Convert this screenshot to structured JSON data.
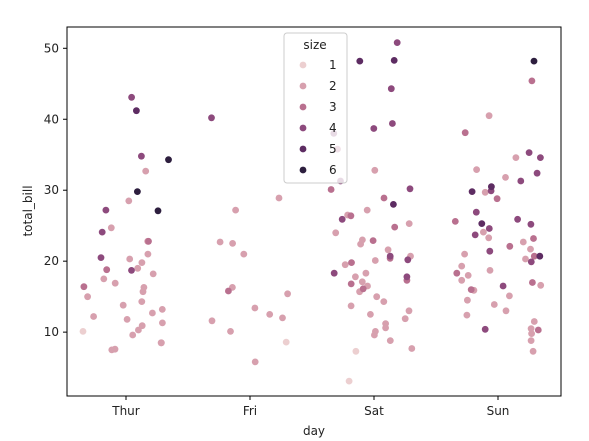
{
  "chart_data": {
    "type": "scatter",
    "plot_style": "stripplot",
    "xlabel": "day",
    "ylabel": "total_bill",
    "categories": [
      "Thur",
      "Fri",
      "Sat",
      "Sun"
    ],
    "y_ticks": [
      10,
      20,
      30,
      40,
      50
    ],
    "ylim": [
      1.0,
      53.0
    ],
    "grid": false,
    "legend": {
      "title": "size",
      "placement": "top-center",
      "entries": [
        {
          "size": 1,
          "label": "1",
          "color": "#eccfd0"
        },
        {
          "size": 2,
          "label": "2",
          "color": "#d7a0ae"
        },
        {
          "size": 3,
          "label": "3",
          "color": "#b9708f"
        },
        {
          "size": 4,
          "label": "4",
          "color": "#8d4a7d"
        },
        {
          "size": 5,
          "label": "5",
          "color": "#5d2c62"
        },
        {
          "size": 6,
          "label": "6",
          "color": "#2d1e3e"
        }
      ]
    },
    "series": [
      {
        "size": 1,
        "points": [
          [
            "Thur",
            10.1
          ],
          [
            "Fri",
            8.6
          ],
          [
            "Sat",
            7.3
          ],
          [
            "Sat",
            3.1
          ]
        ]
      },
      {
        "size": 2,
        "points": [
          [
            "Thur",
            32.7
          ],
          [
            "Thur",
            28.5
          ],
          [
            "Thur",
            24.7
          ],
          [
            "Thur",
            22.8
          ],
          [
            "Thur",
            21.0
          ],
          [
            "Thur",
            20.3
          ],
          [
            "Thur",
            19.8
          ],
          [
            "Thur",
            19.0
          ],
          [
            "Thur",
            18.2
          ],
          [
            "Thur",
            17.5
          ],
          [
            "Thur",
            16.9
          ],
          [
            "Thur",
            16.3
          ],
          [
            "Thur",
            15.7
          ],
          [
            "Thur",
            15.0
          ],
          [
            "Thur",
            14.3
          ],
          [
            "Thur",
            13.8
          ],
          [
            "Thur",
            13.2
          ],
          [
            "Thur",
            12.7
          ],
          [
            "Thur",
            12.2
          ],
          [
            "Thur",
            11.8
          ],
          [
            "Thur",
            11.3
          ],
          [
            "Thur",
            10.9
          ],
          [
            "Thur",
            10.3
          ],
          [
            "Thur",
            9.6
          ],
          [
            "Thur",
            8.5
          ],
          [
            "Thur",
            8.5
          ],
          [
            "Thur",
            7.6
          ],
          [
            "Thur",
            7.5
          ],
          [
            "Fri",
            28.9
          ],
          [
            "Fri",
            27.2
          ],
          [
            "Fri",
            22.7
          ],
          [
            "Fri",
            22.5
          ],
          [
            "Fri",
            21.0
          ],
          [
            "Fri",
            16.3
          ],
          [
            "Fri",
            15.4
          ],
          [
            "Fri",
            13.4
          ],
          [
            "Fri",
            12.5
          ],
          [
            "Fri",
            12.0
          ],
          [
            "Fri",
            11.6
          ],
          [
            "Fri",
            10.1
          ],
          [
            "Fri",
            5.8
          ],
          [
            "Sat",
            32.8
          ],
          [
            "Sat",
            27.2
          ],
          [
            "Sat",
            26.5
          ],
          [
            "Sat",
            25.3
          ],
          [
            "Sat",
            24.0
          ],
          [
            "Sat",
            23.0
          ],
          [
            "Sat",
            22.4
          ],
          [
            "Sat",
            21.6
          ],
          [
            "Sat",
            20.7
          ],
          [
            "Sat",
            20.1
          ],
          [
            "Sat",
            19.5
          ],
          [
            "Sat",
            18.3
          ],
          [
            "Sat",
            17.8
          ],
          [
            "Sat",
            17.1
          ],
          [
            "Sat",
            16.5
          ],
          [
            "Sat",
            15.7
          ],
          [
            "Sat",
            15.0
          ],
          [
            "Sat",
            14.3
          ],
          [
            "Sat",
            13.7
          ],
          [
            "Sat",
            13.0
          ],
          [
            "Sat",
            12.5
          ],
          [
            "Sat",
            11.9
          ],
          [
            "Sat",
            11.2
          ],
          [
            "Sat",
            10.6
          ],
          [
            "Sat",
            10.1
          ],
          [
            "Sat",
            9.6
          ],
          [
            "Sat",
            8.8
          ],
          [
            "Sat",
            7.7
          ],
          [
            "Sun",
            40.5
          ],
          [
            "Sun",
            34.6
          ],
          [
            "Sun",
            32.9
          ],
          [
            "Sun",
            31.8
          ],
          [
            "Sun",
            29.7
          ],
          [
            "Sun",
            24.1
          ],
          [
            "Sun",
            23.3
          ],
          [
            "Sun",
            22.7
          ],
          [
            "Sun",
            21.7
          ],
          [
            "Sun",
            21.0
          ],
          [
            "Sun",
            20.3
          ],
          [
            "Sun",
            19.3
          ],
          [
            "Sun",
            18.7
          ],
          [
            "Sun",
            18.0
          ],
          [
            "Sun",
            17.3
          ],
          [
            "Sun",
            16.6
          ],
          [
            "Sun",
            15.9
          ],
          [
            "Sun",
            15.1
          ],
          [
            "Sun",
            14.5
          ],
          [
            "Sun",
            13.9
          ],
          [
            "Sun",
            13.0
          ],
          [
            "Sun",
            12.4
          ],
          [
            "Sun",
            11.5
          ],
          [
            "Sun",
            10.5
          ],
          [
            "Sun",
            9.8
          ],
          [
            "Sun",
            8.8
          ],
          [
            "Sun",
            7.3
          ]
        ]
      },
      {
        "size": 3,
        "points": [
          [
            "Thur",
            22.8
          ],
          [
            "Thur",
            18.8
          ],
          [
            "Thur",
            16.4
          ],
          [
            "Fri",
            15.8
          ],
          [
            "Sat",
            35.8
          ],
          [
            "Sat",
            30.1
          ],
          [
            "Sat",
            28.9
          ],
          [
            "Sat",
            26.4
          ],
          [
            "Sat",
            24.8
          ],
          [
            "Sat",
            22.9
          ],
          [
            "Sat",
            20.4
          ],
          [
            "Sat",
            19.8
          ],
          [
            "Sat",
            17.3
          ],
          [
            "Sat",
            16.8
          ],
          [
            "Sat",
            16.1
          ],
          [
            "Sun",
            45.4
          ],
          [
            "Sun",
            38.1
          ],
          [
            "Sun",
            28.8
          ],
          [
            "Sun",
            25.6
          ],
          [
            "Sun",
            23.2
          ],
          [
            "Sun",
            22.1
          ],
          [
            "Sun",
            20.7
          ],
          [
            "Sun",
            18.3
          ],
          [
            "Sun",
            17.0
          ],
          [
            "Sun",
            16.0
          ],
          [
            "Sun",
            10.3
          ]
        ]
      },
      {
        "size": 4,
        "points": [
          [
            "Thur",
            43.1
          ],
          [
            "Thur",
            34.8
          ],
          [
            "Thur",
            27.2
          ],
          [
            "Thur",
            24.1
          ],
          [
            "Thur",
            20.5
          ],
          [
            "Thur",
            18.7
          ],
          [
            "Fri",
            40.2
          ],
          [
            "Sat",
            50.8
          ],
          [
            "Sat",
            44.3
          ],
          [
            "Sat",
            39.4
          ],
          [
            "Sat",
            38.7
          ],
          [
            "Sat",
            38.0
          ],
          [
            "Sat",
            31.3
          ],
          [
            "Sat",
            30.2
          ],
          [
            "Sat",
            25.9
          ],
          [
            "Sat",
            20.7
          ],
          [
            "Sat",
            20.2
          ],
          [
            "Sat",
            18.3
          ],
          [
            "Sat",
            17.8
          ],
          [
            "Sun",
            35.3
          ],
          [
            "Sun",
            34.6
          ],
          [
            "Sun",
            32.4
          ],
          [
            "Sun",
            31.3
          ],
          [
            "Sun",
            29.9
          ],
          [
            "Sun",
            26.9
          ],
          [
            "Sun",
            25.9
          ],
          [
            "Sun",
            25.2
          ],
          [
            "Sun",
            24.6
          ],
          [
            "Sun",
            23.7
          ],
          [
            "Sun",
            21.4
          ],
          [
            "Sun",
            19.9
          ],
          [
            "Sun",
            16.5
          ],
          [
            "Sun",
            10.4
          ]
        ]
      },
      {
        "size": 5,
        "points": [
          [
            "Thur",
            41.2
          ],
          [
            "Sat",
            48.3
          ],
          [
            "Sat",
            48.2
          ],
          [
            "Sat",
            28.0
          ],
          [
            "Sun",
            30.5
          ],
          [
            "Sun",
            29.8
          ],
          [
            "Sun",
            25.3
          ],
          [
            "Sun",
            20.7
          ]
        ]
      },
      {
        "size": 6,
        "points": [
          [
            "Thur",
            34.3
          ],
          [
            "Thur",
            29.8
          ],
          [
            "Thur",
            27.1
          ],
          [
            "Sun",
            48.2
          ]
        ]
      }
    ]
  }
}
